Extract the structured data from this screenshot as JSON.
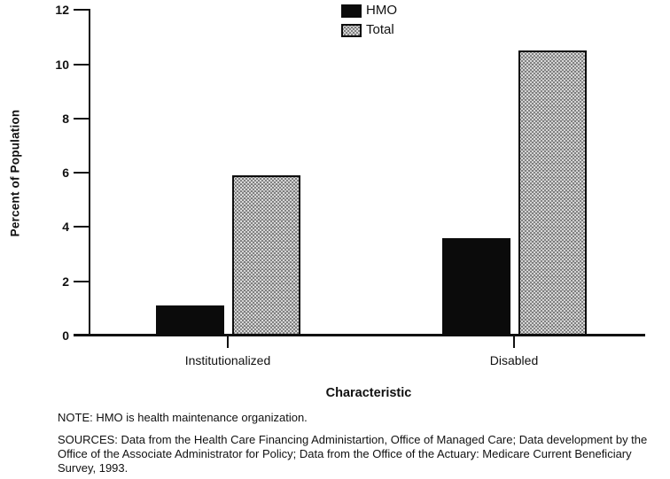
{
  "chart_data": {
    "type": "bar",
    "title": "",
    "categories": [
      "Institutionalized",
      "Disabled"
    ],
    "series": [
      {
        "name": "HMO",
        "style": "solid",
        "color": "#0b0b0b",
        "values": [
          1.1,
          3.6
        ]
      },
      {
        "name": "Total",
        "style": "halftone",
        "color": "#d4d4d4",
        "values": [
          5.9,
          10.5
        ]
      }
    ],
    "xlabel": "Characteristic",
    "ylabel": "Percent of Population",
    "ylim": [
      0,
      12
    ],
    "yticks": [
      0,
      2,
      4,
      6,
      8,
      10,
      12
    ],
    "grid": false,
    "legend_position": "top-center"
  },
  "notes": {
    "note": "NOTE: HMO is health maintenance organization.",
    "sources": "SOURCES: Data from the Health Care Financing Administartion, Office of Managed Care; Data development by the Office of the Associate Administrator for Policy; Data from the Office of the Actuary: Medicare Current Beneficiary Survey, 1993."
  },
  "colors": {
    "hmo_fill": "#0b0b0b",
    "total_fill_base": "#d4d4d4",
    "axis": "#111111",
    "background": "#ffffff"
  }
}
